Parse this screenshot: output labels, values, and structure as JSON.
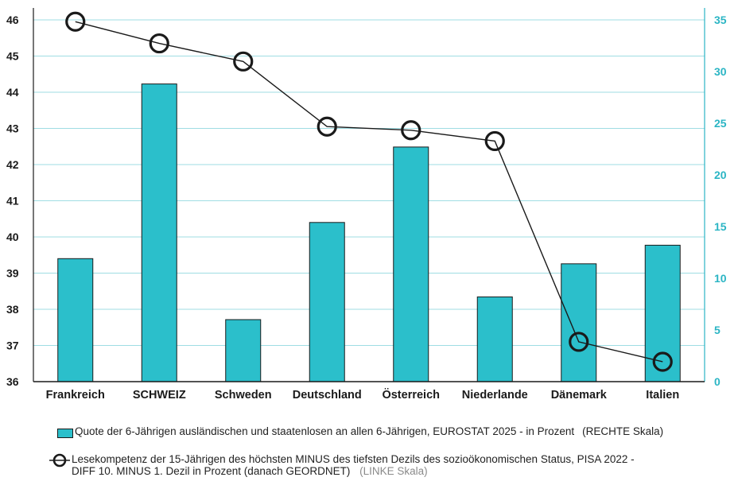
{
  "chart_data": {
    "type": "bar",
    "categories": [
      "Frankreich",
      "SCHWEIZ",
      "Schweden",
      "Deutschland",
      "Österreich",
      "Niederlande",
      "Dänemark",
      "Italien"
    ],
    "series": [
      {
        "name": "Quote der 6-Jährigen ausländischen und staatenlosen an allen 6-Jährigen, EUROSTAT 2025 - in Prozent",
        "axis": "right",
        "type": "bar",
        "color": "#2bbfcb",
        "values": [
          11.9,
          28.8,
          6.0,
          15.4,
          22.7,
          8.2,
          11.4,
          13.2
        ]
      },
      {
        "name": "Lesekompetenz der 15-Jährigen des höchsten MINUS des tiefsten Dezils des sozioökonomischen Status, PISA 2022 - DIFF 10. MINUS 1. Dezil in Prozent (danach GEORDNET)",
        "axis": "left",
        "type": "line",
        "color": "#1a1a1a",
        "values": [
          45.95,
          45.35,
          44.85,
          43.05,
          42.95,
          42.65,
          37.1,
          36.55
        ]
      }
    ],
    "y_left": {
      "range": [
        36,
        46
      ],
      "ticks": [
        "36",
        "37",
        "38",
        "39",
        "40",
        "41",
        "42",
        "43",
        "44",
        "45",
        "46"
      ],
      "color": "#1a1a1a"
    },
    "y_right": {
      "range": [
        0,
        35
      ],
      "ticks": [
        "0",
        "5",
        "10",
        "15",
        "20",
        "25",
        "30",
        "35"
      ],
      "color": "#2bb5c4"
    },
    "grid": true,
    "gridline_color": "#9fdde3"
  },
  "legend": {
    "bar_text": "Quote der 6-Jährigen ausländischen und staatenlosen an allen 6-Jährigen, EUROSTAT 2025 - in Prozent",
    "bar_scale": "(RECHTE Skala)",
    "line_text_1": "Lesekompetenz der 15-Jährigen des höchsten MINUS des tiefsten Dezils des sozioökonomischen Status, PISA 2022 -",
    "line_text_2": "DIFF 10. MINUS 1. Dezil in Prozent (danach GEORDNET)",
    "line_scale": "(LINKE Skala)"
  }
}
